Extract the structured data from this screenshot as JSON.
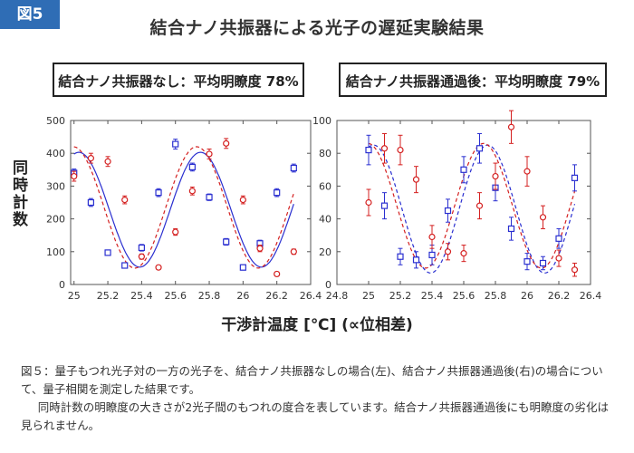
{
  "figure_label": "図5",
  "title": "結合ナノ共振器による光子の遅延実験結果",
  "boxes": {
    "left": "結合ナノ共振器なし：平均明瞭度 78%",
    "right": "結合ナノ共振器通過後：平均明瞭度 79%"
  },
  "ylabel": "同時計数",
  "xlabel": "干渉計温度 [℃] (∝位相差)",
  "caption": {
    "line1": "図５：量子もつれ光子対の一方の光子を、結合ナノ共振器なしの場合(左)、結合ナノ共振器通過後(右)の場合について、量子相関を測定した結果です。",
    "line2": "同時計数の明瞭度の大きさが2光子間のもつれの度合を表しています。結合ナノ共振器通過後にも明瞭度の劣化は見られません。"
  },
  "colors": {
    "blue": "#2a2fd0",
    "red": "#d42020",
    "axis": "#555555"
  },
  "chart_data": [
    {
      "type": "scatter",
      "xlim": [
        24.98,
        26.4
      ],
      "ylim": [
        0,
        500
      ],
      "xticks": [
        25,
        25.2,
        25.4,
        25.6,
        25.8,
        26,
        26.2,
        26.4
      ],
      "xtick_labels": [
        "25",
        "25.2",
        "25.4",
        "25.6",
        "25.8",
        "26",
        "26.2",
        "26.4"
      ],
      "yticks": [
        0,
        100,
        200,
        300,
        400,
        500
      ],
      "fits": [
        {
          "color": "blue",
          "style": "solid",
          "mean": 228,
          "amp": 175,
          "period": 0.72,
          "phase": -0.25
        },
        {
          "color": "red",
          "style": "dashed",
          "mean": 235,
          "amp": 185,
          "period": 0.73,
          "phase": 0.04
        }
      ],
      "series": [
        {
          "color": "blue",
          "marker": "square",
          "points": [
            [
              25,
              340,
              12
            ],
            [
              25.1,
              250,
              12
            ],
            [
              25.2,
              97,
              8
            ],
            [
              25.3,
              58,
              8
            ],
            [
              25.4,
              112,
              10
            ],
            [
              25.5,
              280,
              12
            ],
            [
              25.6,
              428,
              15
            ],
            [
              25.7,
              358,
              12
            ],
            [
              25.8,
              266,
              10
            ],
            [
              25.9,
              130,
              10
            ],
            [
              26,
              52,
              8
            ],
            [
              26.1,
              125,
              10
            ],
            [
              26.2,
              280,
              12
            ],
            [
              26.3,
              355,
              12
            ]
          ]
        },
        {
          "color": "red",
          "marker": "circle",
          "points": [
            [
              25,
              330,
              15
            ],
            [
              25.1,
              385,
              15
            ],
            [
              25.2,
              375,
              15
            ],
            [
              25.3,
              258,
              12
            ],
            [
              25.4,
              85,
              8
            ],
            [
              25.5,
              52,
              6
            ],
            [
              25.6,
              160,
              10
            ],
            [
              25.7,
              285,
              12
            ],
            [
              25.8,
              398,
              15
            ],
            [
              25.9,
              430,
              15
            ],
            [
              26,
              258,
              12
            ],
            [
              26.1,
              110,
              10
            ],
            [
              26.2,
              32,
              6
            ],
            [
              26.3,
              100,
              8
            ]
          ]
        }
      ]
    },
    {
      "type": "scatter",
      "xlim": [
        24.8,
        26.4
      ],
      "ylim": [
        0,
        100
      ],
      "xticks": [
        24.8,
        25,
        25.2,
        25.4,
        25.6,
        25.8,
        26,
        26.2,
        26.4
      ],
      "xtick_labels": [
        "24.8",
        "25",
        "25.2",
        "25.4",
        "25.6",
        "25.8",
        "26",
        "26.2",
        "26.4"
      ],
      "yticks": [
        0,
        20,
        40,
        60,
        80,
        100
      ],
      "fits": [
        {
          "color": "blue",
          "style": "dashed",
          "mean": 46,
          "amp": 39,
          "period": 0.72,
          "phase": -0.27
        },
        {
          "color": "red",
          "style": "dashed",
          "mean": 48,
          "amp": 38,
          "period": 0.73,
          "phase": 0.04
        }
      ],
      "series": [
        {
          "color": "blue",
          "marker": "square",
          "points": [
            [
              25,
              82,
              9
            ],
            [
              25.1,
              48,
              8
            ],
            [
              25.2,
              17,
              5
            ],
            [
              25.3,
              15,
              5
            ],
            [
              25.4,
              18,
              6
            ],
            [
              25.5,
              45,
              7
            ],
            [
              25.6,
              70,
              8
            ],
            [
              25.7,
              83,
              9
            ],
            [
              25.8,
              59,
              8
            ],
            [
              25.9,
              34,
              7
            ],
            [
              26,
              14,
              5
            ],
            [
              26.1,
              13,
              4
            ],
            [
              26.2,
              28,
              6
            ],
            [
              26.3,
              65,
              8
            ]
          ]
        },
        {
          "color": "red",
          "marker": "circle",
          "points": [
            [
              25,
              50,
              8
            ],
            [
              25.1,
              83,
              9
            ],
            [
              25.2,
              82,
              9
            ],
            [
              25.3,
              64,
              8
            ],
            [
              25.4,
              29,
              7
            ],
            [
              25.5,
              20,
              5
            ],
            [
              25.6,
              19,
              5
            ],
            [
              25.7,
              48,
              8
            ],
            [
              25.8,
              66,
              8
            ],
            [
              25.9,
              96,
              10
            ],
            [
              26,
              69,
              9
            ],
            [
              26.1,
              41,
              7
            ],
            [
              26.2,
              16,
              5
            ],
            [
              26.3,
              9,
              4
            ]
          ]
        }
      ]
    }
  ]
}
